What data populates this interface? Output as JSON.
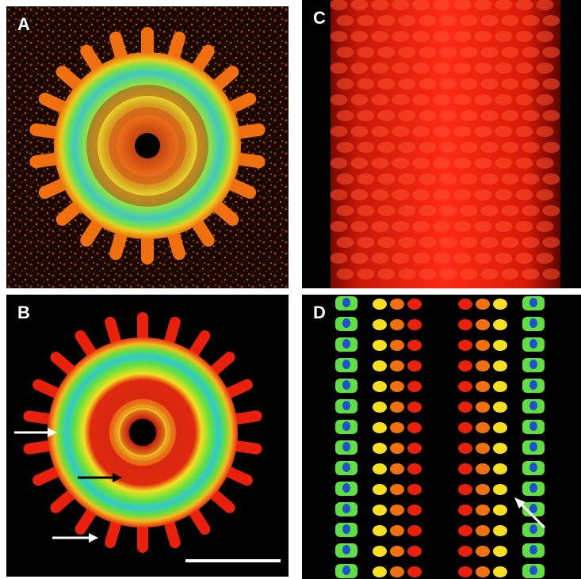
{
  "panels": [
    {
      "label": "A"
    },
    {
      "label": "B"
    },
    {
      "label": "C"
    },
    {
      "label": "D"
    }
  ],
  "colors": {
    "red": "#e8200c",
    "orange": "#f07010",
    "yellow": "#f4e020",
    "green": "#60e040",
    "cyan": "#30d8c8",
    "blue": "#2050d0",
    "arrow_white": "#ffffff",
    "arrow_black": "#000000"
  }
}
